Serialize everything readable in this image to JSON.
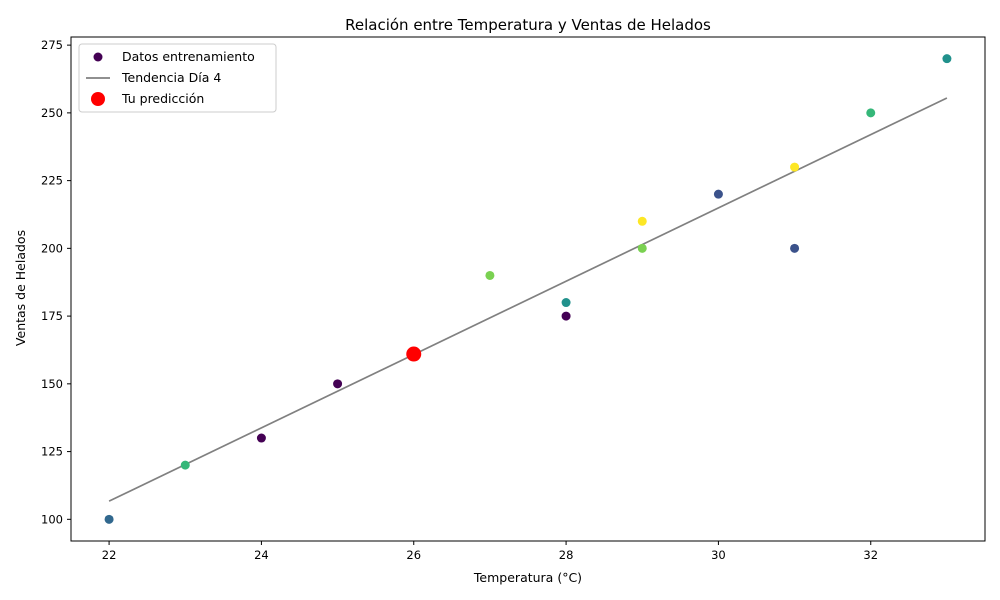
{
  "chart_data": {
    "type": "scatter",
    "title": "Relación entre Temperatura y Ventas de Helados",
    "xlabel": "Temperatura (°C)",
    "ylabel": "Ventas de Helados",
    "xlim": [
      21.5,
      33.5
    ],
    "ylim": [
      92,
      278
    ],
    "xticks": [
      22,
      24,
      26,
      28,
      30,
      32
    ],
    "yticks": [
      100,
      125,
      150,
      175,
      200,
      225,
      250,
      275
    ],
    "grid": false,
    "legend_position": "upper-left",
    "series": [
      {
        "name": "Datos entrenamiento",
        "kind": "scatter",
        "legend_color": "#440154",
        "points": [
          {
            "x": 22,
            "y": 100,
            "color": "#31688e"
          },
          {
            "x": 23,
            "y": 120,
            "color": "#35b779"
          },
          {
            "x": 24,
            "y": 130,
            "color": "#440154"
          },
          {
            "x": 25,
            "y": 150,
            "color": "#440154"
          },
          {
            "x": 27,
            "y": 190,
            "color": "#7ad151"
          },
          {
            "x": 28,
            "y": 175,
            "color": "#440154"
          },
          {
            "x": 28,
            "y": 180,
            "color": "#21918c"
          },
          {
            "x": 29,
            "y": 210,
            "color": "#fde725"
          },
          {
            "x": 29,
            "y": 200,
            "color": "#7ad151"
          },
          {
            "x": 30,
            "y": 220,
            "color": "#3b528b"
          },
          {
            "x": 31,
            "y": 230,
            "color": "#fde725"
          },
          {
            "x": 31,
            "y": 200,
            "color": "#3b528b"
          },
          {
            "x": 32,
            "y": 250,
            "color": "#35b779"
          },
          {
            "x": 33,
            "y": 270,
            "color": "#21918c"
          }
        ]
      },
      {
        "name": "Tendencia Día 4",
        "kind": "line",
        "color": "#808080",
        "x": [
          22,
          33
        ],
        "y": [
          106.7,
          255.5
        ]
      },
      {
        "name": "Tu predicción",
        "kind": "highlight",
        "color": "#ff0000",
        "x": [
          26
        ],
        "y": [
          161
        ]
      }
    ]
  }
}
